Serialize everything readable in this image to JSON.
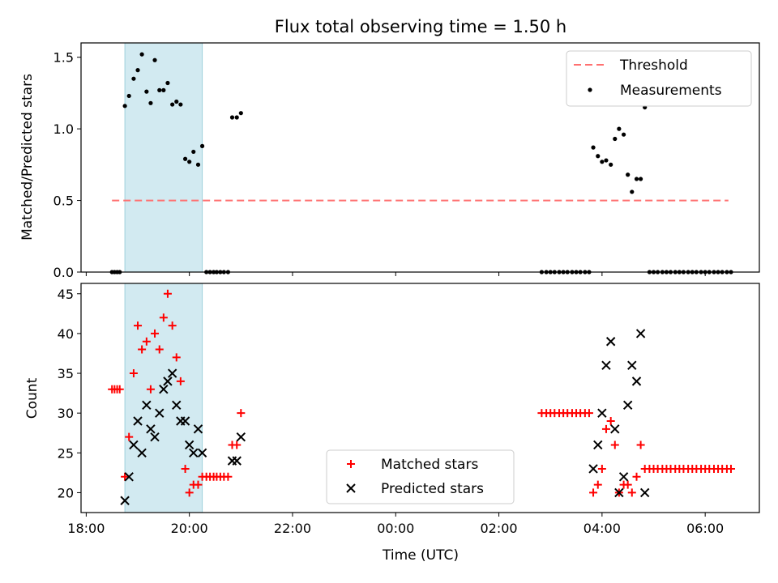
{
  "chart_data": {
    "title": "Flux total observing time = 1.50 h",
    "xlabel": "Time (UTC)",
    "x_unit": "hours (UTC clock)",
    "xlim": [
      17.9,
      31.05
    ],
    "x_ticks": [
      {
        "value": 18,
        "label": "18:00"
      },
      {
        "value": 20,
        "label": "20:00"
      },
      {
        "value": 22,
        "label": "22:00"
      },
      {
        "value": 24,
        "label": "00:00"
      },
      {
        "value": 26,
        "label": "02:00"
      },
      {
        "value": 28,
        "label": "04:00"
      },
      {
        "value": 30,
        "label": "06:00"
      }
    ],
    "shaded_region": {
      "x_start": 18.75,
      "x_end": 20.25,
      "color": "#add8e6"
    },
    "top_panel": {
      "type": "scatter",
      "ylabel": "Matched/Predicted stars",
      "ylim": [
        0.0,
        1.6
      ],
      "yticks": [
        {
          "value": 0.0,
          "label": "0.0"
        },
        {
          "value": 0.5,
          "label": "0.5"
        },
        {
          "value": 1.0,
          "label": "1.0"
        },
        {
          "value": 1.5,
          "label": "1.5"
        }
      ],
      "legend": {
        "position": "top-right",
        "entries": [
          "Threshold",
          "Measurements"
        ]
      },
      "threshold": {
        "name": "Threshold",
        "y": 0.5,
        "x_start": 18.5,
        "x_end": 30.45,
        "color": "#ff7070"
      },
      "measurements": {
        "name": "Measurements",
        "color": "#000000",
        "points": [
          [
            18.5,
            0
          ],
          [
            18.55,
            0
          ],
          [
            18.6,
            0
          ],
          [
            18.65,
            0
          ],
          [
            18.75,
            1.16
          ],
          [
            18.83,
            1.23
          ],
          [
            18.92,
            1.35
          ],
          [
            19.0,
            1.41
          ],
          [
            19.08,
            1.52
          ],
          [
            19.17,
            1.26
          ],
          [
            19.25,
            1.18
          ],
          [
            19.33,
            1.48
          ],
          [
            19.42,
            1.27
          ],
          [
            19.5,
            1.27
          ],
          [
            19.58,
            1.32
          ],
          [
            19.67,
            1.17
          ],
          [
            19.75,
            1.19
          ],
          [
            19.83,
            1.17
          ],
          [
            19.92,
            0.79
          ],
          [
            20.0,
            0.77
          ],
          [
            20.08,
            0.84
          ],
          [
            20.17,
            0.75
          ],
          [
            20.25,
            0.88
          ],
          [
            20.33,
            0
          ],
          [
            20.4,
            0
          ],
          [
            20.47,
            0
          ],
          [
            20.53,
            0
          ],
          [
            20.6,
            0
          ],
          [
            20.67,
            0
          ],
          [
            20.75,
            0
          ],
          [
            20.83,
            1.08
          ],
          [
            20.92,
            1.08
          ],
          [
            21.0,
            1.11
          ],
          [
            26.83,
            0
          ],
          [
            26.92,
            0
          ],
          [
            27.0,
            0
          ],
          [
            27.08,
            0
          ],
          [
            27.17,
            0
          ],
          [
            27.25,
            0
          ],
          [
            27.33,
            0
          ],
          [
            27.42,
            0
          ],
          [
            27.5,
            0
          ],
          [
            27.58,
            0
          ],
          [
            27.67,
            0
          ],
          [
            27.75,
            0
          ],
          [
            27.83,
            0.87
          ],
          [
            27.92,
            0.81
          ],
          [
            28.0,
            0.77
          ],
          [
            28.08,
            0.78
          ],
          [
            28.17,
            0.75
          ],
          [
            28.25,
            0.93
          ],
          [
            28.33,
            1.0
          ],
          [
            28.42,
            0.96
          ],
          [
            28.5,
            0.68
          ],
          [
            28.58,
            0.56
          ],
          [
            28.67,
            0.65
          ],
          [
            28.75,
            0.65
          ],
          [
            28.83,
            1.15
          ],
          [
            28.92,
            0
          ],
          [
            29.0,
            0
          ],
          [
            29.08,
            0
          ],
          [
            29.17,
            0
          ],
          [
            29.25,
            0
          ],
          [
            29.33,
            0
          ],
          [
            29.42,
            0
          ],
          [
            29.5,
            0
          ],
          [
            29.58,
            0
          ],
          [
            29.67,
            0
          ],
          [
            29.75,
            0
          ],
          [
            29.83,
            0
          ],
          [
            29.92,
            0
          ],
          [
            30.0,
            0
          ],
          [
            30.08,
            0
          ],
          [
            30.17,
            0
          ],
          [
            30.25,
            0
          ],
          [
            30.33,
            0
          ],
          [
            30.42,
            0
          ],
          [
            30.5,
            0
          ]
        ]
      }
    },
    "bottom_panel": {
      "type": "scatter",
      "ylabel": "Count",
      "ylim": [
        17.5,
        46.3
      ],
      "yticks": [
        {
          "value": 20,
          "label": "20"
        },
        {
          "value": 25,
          "label": "25"
        },
        {
          "value": 30,
          "label": "30"
        },
        {
          "value": 35,
          "label": "35"
        },
        {
          "value": 40,
          "label": "40"
        },
        {
          "value": 45,
          "label": "45"
        }
      ],
      "legend": {
        "position": "lower-center",
        "entries": [
          "Matched stars",
          "Predicted stars"
        ]
      },
      "series": [
        {
          "name": "Matched stars",
          "marker": "plus",
          "color": "#ff0000",
          "points": [
            [
              18.5,
              33
            ],
            [
              18.55,
              33
            ],
            [
              18.6,
              33
            ],
            [
              18.65,
              33
            ],
            [
              18.75,
              22
            ],
            [
              18.83,
              27
            ],
            [
              18.92,
              35
            ],
            [
              19.0,
              41
            ],
            [
              19.08,
              38
            ],
            [
              19.17,
              39
            ],
            [
              19.25,
              33
            ],
            [
              19.33,
              40
            ],
            [
              19.42,
              38
            ],
            [
              19.5,
              42
            ],
            [
              19.58,
              45
            ],
            [
              19.67,
              41
            ],
            [
              19.75,
              37
            ],
            [
              19.83,
              34
            ],
            [
              19.92,
              23
            ],
            [
              20.0,
              20
            ],
            [
              20.08,
              21
            ],
            [
              20.17,
              21
            ],
            [
              20.25,
              22
            ],
            [
              20.33,
              22
            ],
            [
              20.4,
              22
            ],
            [
              20.47,
              22
            ],
            [
              20.53,
              22
            ],
            [
              20.6,
              22
            ],
            [
              20.67,
              22
            ],
            [
              20.75,
              22
            ],
            [
              20.83,
              26
            ],
            [
              20.92,
              26
            ],
            [
              21.0,
              30
            ],
            [
              26.83,
              30
            ],
            [
              26.92,
              30
            ],
            [
              27.0,
              30
            ],
            [
              27.08,
              30
            ],
            [
              27.17,
              30
            ],
            [
              27.25,
              30
            ],
            [
              27.33,
              30
            ],
            [
              27.42,
              30
            ],
            [
              27.5,
              30
            ],
            [
              27.58,
              30
            ],
            [
              27.67,
              30
            ],
            [
              27.75,
              30
            ],
            [
              27.83,
              20
            ],
            [
              27.92,
              21
            ],
            [
              28.0,
              23
            ],
            [
              28.08,
              28
            ],
            [
              28.17,
              29
            ],
            [
              28.25,
              26
            ],
            [
              28.33,
              20
            ],
            [
              28.42,
              21
            ],
            [
              28.5,
              21
            ],
            [
              28.58,
              20
            ],
            [
              28.67,
              22
            ],
            [
              28.75,
              26
            ],
            [
              28.83,
              23
            ],
            [
              28.92,
              23
            ],
            [
              29.0,
              23
            ],
            [
              29.08,
              23
            ],
            [
              29.17,
              23
            ],
            [
              29.25,
              23
            ],
            [
              29.33,
              23
            ],
            [
              29.42,
              23
            ],
            [
              29.5,
              23
            ],
            [
              29.58,
              23
            ],
            [
              29.67,
              23
            ],
            [
              29.75,
              23
            ],
            [
              29.83,
              23
            ],
            [
              29.92,
              23
            ],
            [
              30.0,
              23
            ],
            [
              30.08,
              23
            ],
            [
              30.17,
              23
            ],
            [
              30.25,
              23
            ],
            [
              30.33,
              23
            ],
            [
              30.42,
              23
            ],
            [
              30.5,
              23
            ]
          ]
        },
        {
          "name": "Predicted stars",
          "marker": "x",
          "color": "#000000",
          "points": [
            [
              18.75,
              19
            ],
            [
              18.83,
              22
            ],
            [
              18.92,
              26
            ],
            [
              19.0,
              29
            ],
            [
              19.08,
              25
            ],
            [
              19.17,
              31
            ],
            [
              19.25,
              28
            ],
            [
              19.33,
              27
            ],
            [
              19.42,
              30
            ],
            [
              19.5,
              33
            ],
            [
              19.58,
              34
            ],
            [
              19.67,
              35
            ],
            [
              19.75,
              31
            ],
            [
              19.83,
              29
            ],
            [
              19.92,
              29
            ],
            [
              20.0,
              26
            ],
            [
              20.08,
              25
            ],
            [
              20.17,
              28
            ],
            [
              20.25,
              25
            ],
            [
              20.83,
              24
            ],
            [
              20.92,
              24
            ],
            [
              21.0,
              27
            ],
            [
              27.83,
              23
            ],
            [
              27.92,
              26
            ],
            [
              28.0,
              30
            ],
            [
              28.08,
              36
            ],
            [
              28.17,
              39
            ],
            [
              28.25,
              28
            ],
            [
              28.33,
              20
            ],
            [
              28.42,
              22
            ],
            [
              28.5,
              31
            ],
            [
              28.58,
              36
            ],
            [
              28.67,
              34
            ],
            [
              28.75,
              40
            ],
            [
              28.83,
              20
            ]
          ]
        }
      ]
    }
  }
}
